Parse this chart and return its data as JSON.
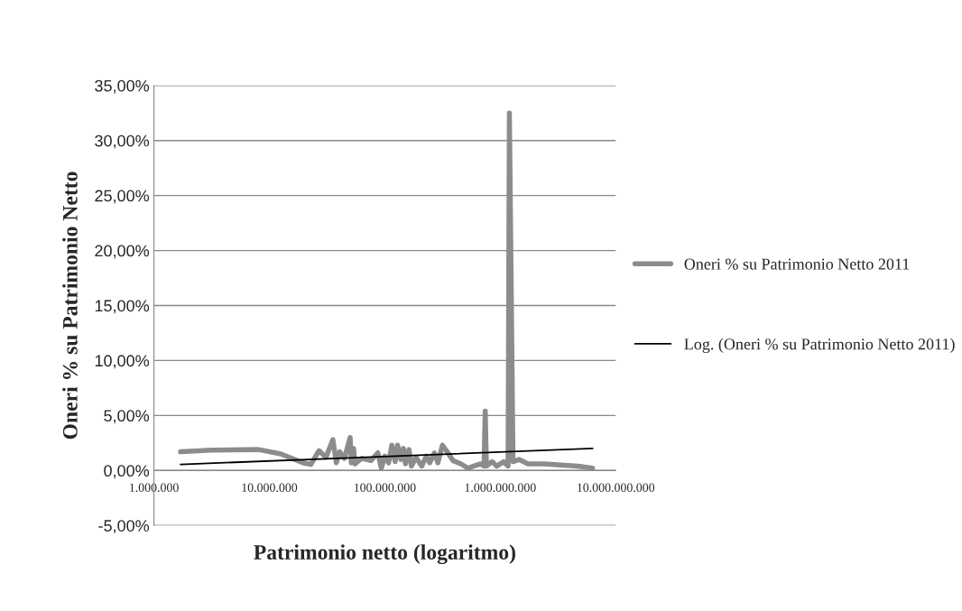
{
  "chart_data": {
    "type": "line",
    "xlabel": "Patrimonio netto (logaritmo)",
    "ylabel": "Oneri % su Patrimonio Netto",
    "log": "x",
    "grid": "y",
    "legend": "right",
    "marker": "none",
    "line_style": "solid",
    "xlim": [
      1000000,
      10000000000
    ],
    "xticks": [
      {
        "value": 1000000,
        "label": "1.000.000"
      },
      {
        "value": 10000000,
        "label": "10.000.000"
      },
      {
        "value": 100000000,
        "label": "100.000.000"
      },
      {
        "value": 1000000000,
        "label": "1.000.000.000"
      },
      {
        "value": 10000000000,
        "label": "10.000.000.000"
      }
    ],
    "ylim": [
      -5,
      35
    ],
    "yticks": [
      {
        "value": -5,
        "label": "-5,00%"
      },
      {
        "value": 0,
        "label": "0,00%"
      },
      {
        "value": 5,
        "label": "5,00%"
      },
      {
        "value": 10,
        "label": "10,00%"
      },
      {
        "value": 15,
        "label": "15,00%"
      },
      {
        "value": 20,
        "label": "20,00%"
      },
      {
        "value": 25,
        "label": "25,00%"
      },
      {
        "value": 30,
        "label": "30,00%"
      },
      {
        "value": 35,
        "label": "35,00%"
      }
    ],
    "series": [
      {
        "name": "Oneri % su Patrimonio Netto 2011",
        "color": "#8c8c8c",
        "x": [
          1700000,
          3160000,
          8100000,
          12600000,
          19500000,
          22900000,
          26900000,
          30900000,
          35500000,
          38000000,
          40700000,
          44700000,
          50100000,
          51300000,
          53700000,
          55000000,
          63100000,
          75900000,
          87100000,
          93300000,
          100000000,
          108000000,
          115000000,
          123000000,
          129000000,
          138000000,
          145000000,
          151000000,
          162000000,
          170000000,
          186000000,
          209000000,
          229000000,
          245000000,
          269000000,
          288000000,
          316000000,
          347000000,
          389000000,
          457000000,
          525000000,
          589000000,
          676000000,
          724000000,
          741000000,
          759000000,
          851000000,
          933000000,
          1070000000,
          1170000000,
          1200000000,
          1290000000,
          1450000000,
          1740000000,
          2400000000,
          4680000000,
          6310000000
        ],
        "values": [
          1.7,
          1.85,
          1.9,
          1.5,
          0.7,
          0.55,
          1.8,
          1.2,
          2.8,
          0.7,
          1.7,
          1.1,
          3.0,
          0.7,
          2.0,
          0.6,
          1.1,
          0.9,
          1.6,
          0.2,
          1.3,
          0.7,
          2.3,
          0.8,
          2.3,
          1.0,
          2.0,
          0.6,
          1.9,
          0.4,
          1.2,
          0.4,
          1.3,
          0.7,
          1.6,
          0.7,
          2.3,
          1.7,
          0.9,
          0.6,
          0.2,
          0.4,
          0.6,
          0.4,
          5.4,
          0.4,
          0.8,
          0.4,
          0.8,
          0.4,
          32.5,
          0.8,
          1.0,
          0.6,
          0.6,
          0.4,
          0.2
        ]
      },
      {
        "name": "Log. (Oneri % su Patrimonio Netto 2011)",
        "color": "#000000",
        "x": [
          1700000,
          6310000000
        ],
        "values": [
          0.55,
          2.0
        ]
      }
    ]
  }
}
